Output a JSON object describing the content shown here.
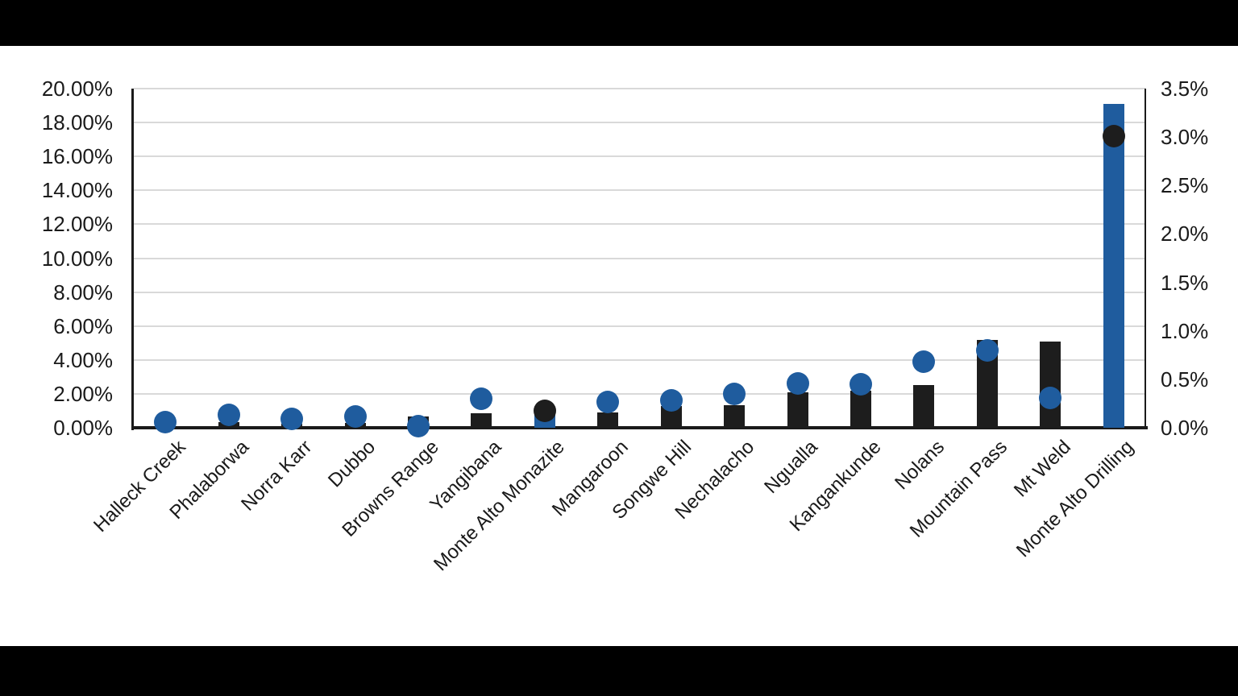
{
  "chart_data": {
    "type": "combo-bar-scatter-dual-axis",
    "title": "",
    "categories": [
      "Halleck Creek",
      "Phalaborwa",
      "Norra Karr",
      "Dubbo",
      "Browns Range",
      "Yangibana",
      "Monte Alto Monazite",
      "Mangaroon",
      "Songwe Hill",
      "Nechalacho",
      "Ngualla",
      "Kangankunde",
      "Nolans",
      "Mountain Pass",
      "Mt Weld",
      "Monte Alto Drilling"
    ],
    "series": [
      {
        "name": "bars",
        "type": "bar",
        "points": [
          {
            "category": "Halleck Creek",
            "value": 0.15,
            "axis": "left",
            "color": "#1d1d1d"
          },
          {
            "category": "Phalaborwa",
            "value": 0.33,
            "axis": "left",
            "color": "#1d1d1d"
          },
          {
            "category": "Norra Karr",
            "value": 0.25,
            "axis": "left",
            "color": "#1d1d1d"
          },
          {
            "category": "Dubbo",
            "value": 0.3,
            "axis": "left",
            "color": "#1d1d1d"
          },
          {
            "category": "Browns Range",
            "value": 0.68,
            "axis": "left",
            "color": "#1d1d1d"
          },
          {
            "category": "Yangibana",
            "value": 0.85,
            "axis": "left",
            "color": "#1d1d1d"
          },
          {
            "category": "Monte Alto Monazite",
            "value": 0.19,
            "axis": "right",
            "color": "#1f5c9e"
          },
          {
            "category": "Mangaroon",
            "value": 0.9,
            "axis": "left",
            "color": "#1d1d1d"
          },
          {
            "category": "Songwe Hill",
            "value": 1.27,
            "axis": "left",
            "color": "#1d1d1d"
          },
          {
            "category": "Nechalacho",
            "value": 1.35,
            "axis": "left",
            "color": "#1d1d1d"
          },
          {
            "category": "Ngualla",
            "value": 2.1,
            "axis": "left",
            "color": "#1d1d1d"
          },
          {
            "category": "Kangankunde",
            "value": 2.2,
            "axis": "left",
            "color": "#1d1d1d"
          },
          {
            "category": "Nolans",
            "value": 2.5,
            "axis": "left",
            "color": "#1d1d1d"
          },
          {
            "category": "Mountain Pass",
            "value": 5.2,
            "axis": "left",
            "color": "#1d1d1d"
          },
          {
            "category": "Mt Weld",
            "value": 5.1,
            "axis": "left",
            "color": "#1d1d1d"
          },
          {
            "category": "Monte Alto Drilling",
            "value": 3.34,
            "axis": "right",
            "color": "#1f5c9e"
          }
        ]
      },
      {
        "name": "dots",
        "type": "scatter",
        "points": [
          {
            "category": "Halleck Creek",
            "value": 0.06,
            "axis": "right",
            "color": "#1f5c9e"
          },
          {
            "category": "Phalaborwa",
            "value": 0.13,
            "axis": "right",
            "color": "#1f5c9e"
          },
          {
            "category": "Norra Karr",
            "value": 0.09,
            "axis": "right",
            "color": "#1f5c9e"
          },
          {
            "category": "Dubbo",
            "value": 0.12,
            "axis": "right",
            "color": "#1f5c9e"
          },
          {
            "category": "Browns Range",
            "value": 0.02,
            "axis": "right",
            "color": "#1f5c9e"
          },
          {
            "category": "Yangibana",
            "value": 0.3,
            "axis": "right",
            "color": "#1f5c9e"
          },
          {
            "category": "Monte Alto Monazite",
            "value": 1.0,
            "axis": "left",
            "color": "#1d1d1d"
          },
          {
            "category": "Mangaroon",
            "value": 0.27,
            "axis": "right",
            "color": "#1f5c9e"
          },
          {
            "category": "Songwe Hill",
            "value": 0.28,
            "axis": "right",
            "color": "#1f5c9e"
          },
          {
            "category": "Nechalacho",
            "value": 0.35,
            "axis": "right",
            "color": "#1f5c9e"
          },
          {
            "category": "Ngualla",
            "value": 0.46,
            "axis": "right",
            "color": "#1f5c9e"
          },
          {
            "category": "Kangankunde",
            "value": 0.45,
            "axis": "right",
            "color": "#1f5c9e"
          },
          {
            "category": "Nolans",
            "value": 0.68,
            "axis": "right",
            "color": "#1f5c9e"
          },
          {
            "category": "Mountain Pass",
            "value": 0.8,
            "axis": "right",
            "color": "#1f5c9e"
          },
          {
            "category": "Mt Weld",
            "value": 0.31,
            "axis": "right",
            "color": "#1f5c9e"
          },
          {
            "category": "Monte Alto Drilling",
            "value": 17.2,
            "axis": "left",
            "color": "#1d1d1d"
          }
        ]
      }
    ],
    "left_axis": {
      "min": 0,
      "max": 20,
      "step": 2,
      "tick_labels": [
        "20.00%",
        "18.00%",
        "16.00%",
        "14.00%",
        "12.00%",
        "10.00%",
        "8.00%",
        "6.00%",
        "4.00%",
        "2.00%",
        "0.00%"
      ]
    },
    "right_axis": {
      "min": 0,
      "max": 3.5,
      "step": 0.5,
      "tick_labels": [
        "3.5%",
        "3.0%",
        "2.5%",
        "2.0%",
        "1.5%",
        "1.0%",
        "0.5%",
        "0.0%"
      ]
    },
    "grid": true,
    "legend": "none",
    "colors": {
      "bar_black": "#1d1d1d",
      "highlight_blue": "#1f5c9e",
      "gridline": "#D9D9D9",
      "axis_line": "#1a1a1a",
      "plot_background": "#FFFFFF",
      "page_background": "#000000"
    }
  }
}
